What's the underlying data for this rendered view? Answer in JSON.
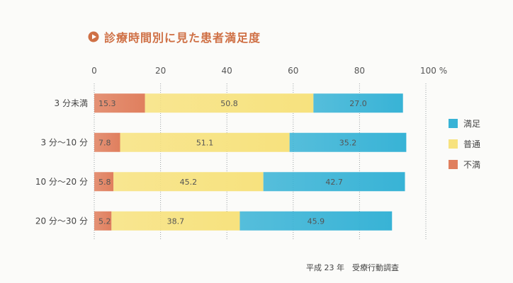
{
  "chart_data": {
    "type": "bar",
    "orientation": "horizontal",
    "stacked": true,
    "title": "診療時間別に見た患者満足度",
    "source": "平成 23 年　受療行動調査",
    "x_ticks": [
      "0",
      "20",
      "40",
      "60",
      "80",
      "100 %"
    ],
    "xlim": [
      0,
      100
    ],
    "grid": "dotted vertical",
    "legend_position": "right",
    "categories": [
      "3 分未満",
      "3 分〜10 分",
      "10 分〜20 分",
      "20 分〜30 分"
    ],
    "series": [
      {
        "name": "不満",
        "values": [
          15.3,
          7.8,
          5.8,
          5.2
        ],
        "labels": [
          "15.3",
          "7.8",
          "5.8",
          "5.2"
        ],
        "color": "#e07f5e"
      },
      {
        "name": "普通",
        "values": [
          50.8,
          51.1,
          45.2,
          38.7
        ],
        "labels": [
          "50.8",
          "51.1",
          "45.2",
          "38.7"
        ],
        "color": "#f7e27e"
      },
      {
        "name": "満足",
        "values": [
          27.0,
          35.2,
          42.7,
          45.9
        ],
        "labels": [
          "27.0",
          "35.2",
          "42.7",
          "45.9"
        ],
        "color": "#38b3d6"
      }
    ],
    "legend_order": [
      "満足",
      "普通",
      "不満"
    ]
  }
}
